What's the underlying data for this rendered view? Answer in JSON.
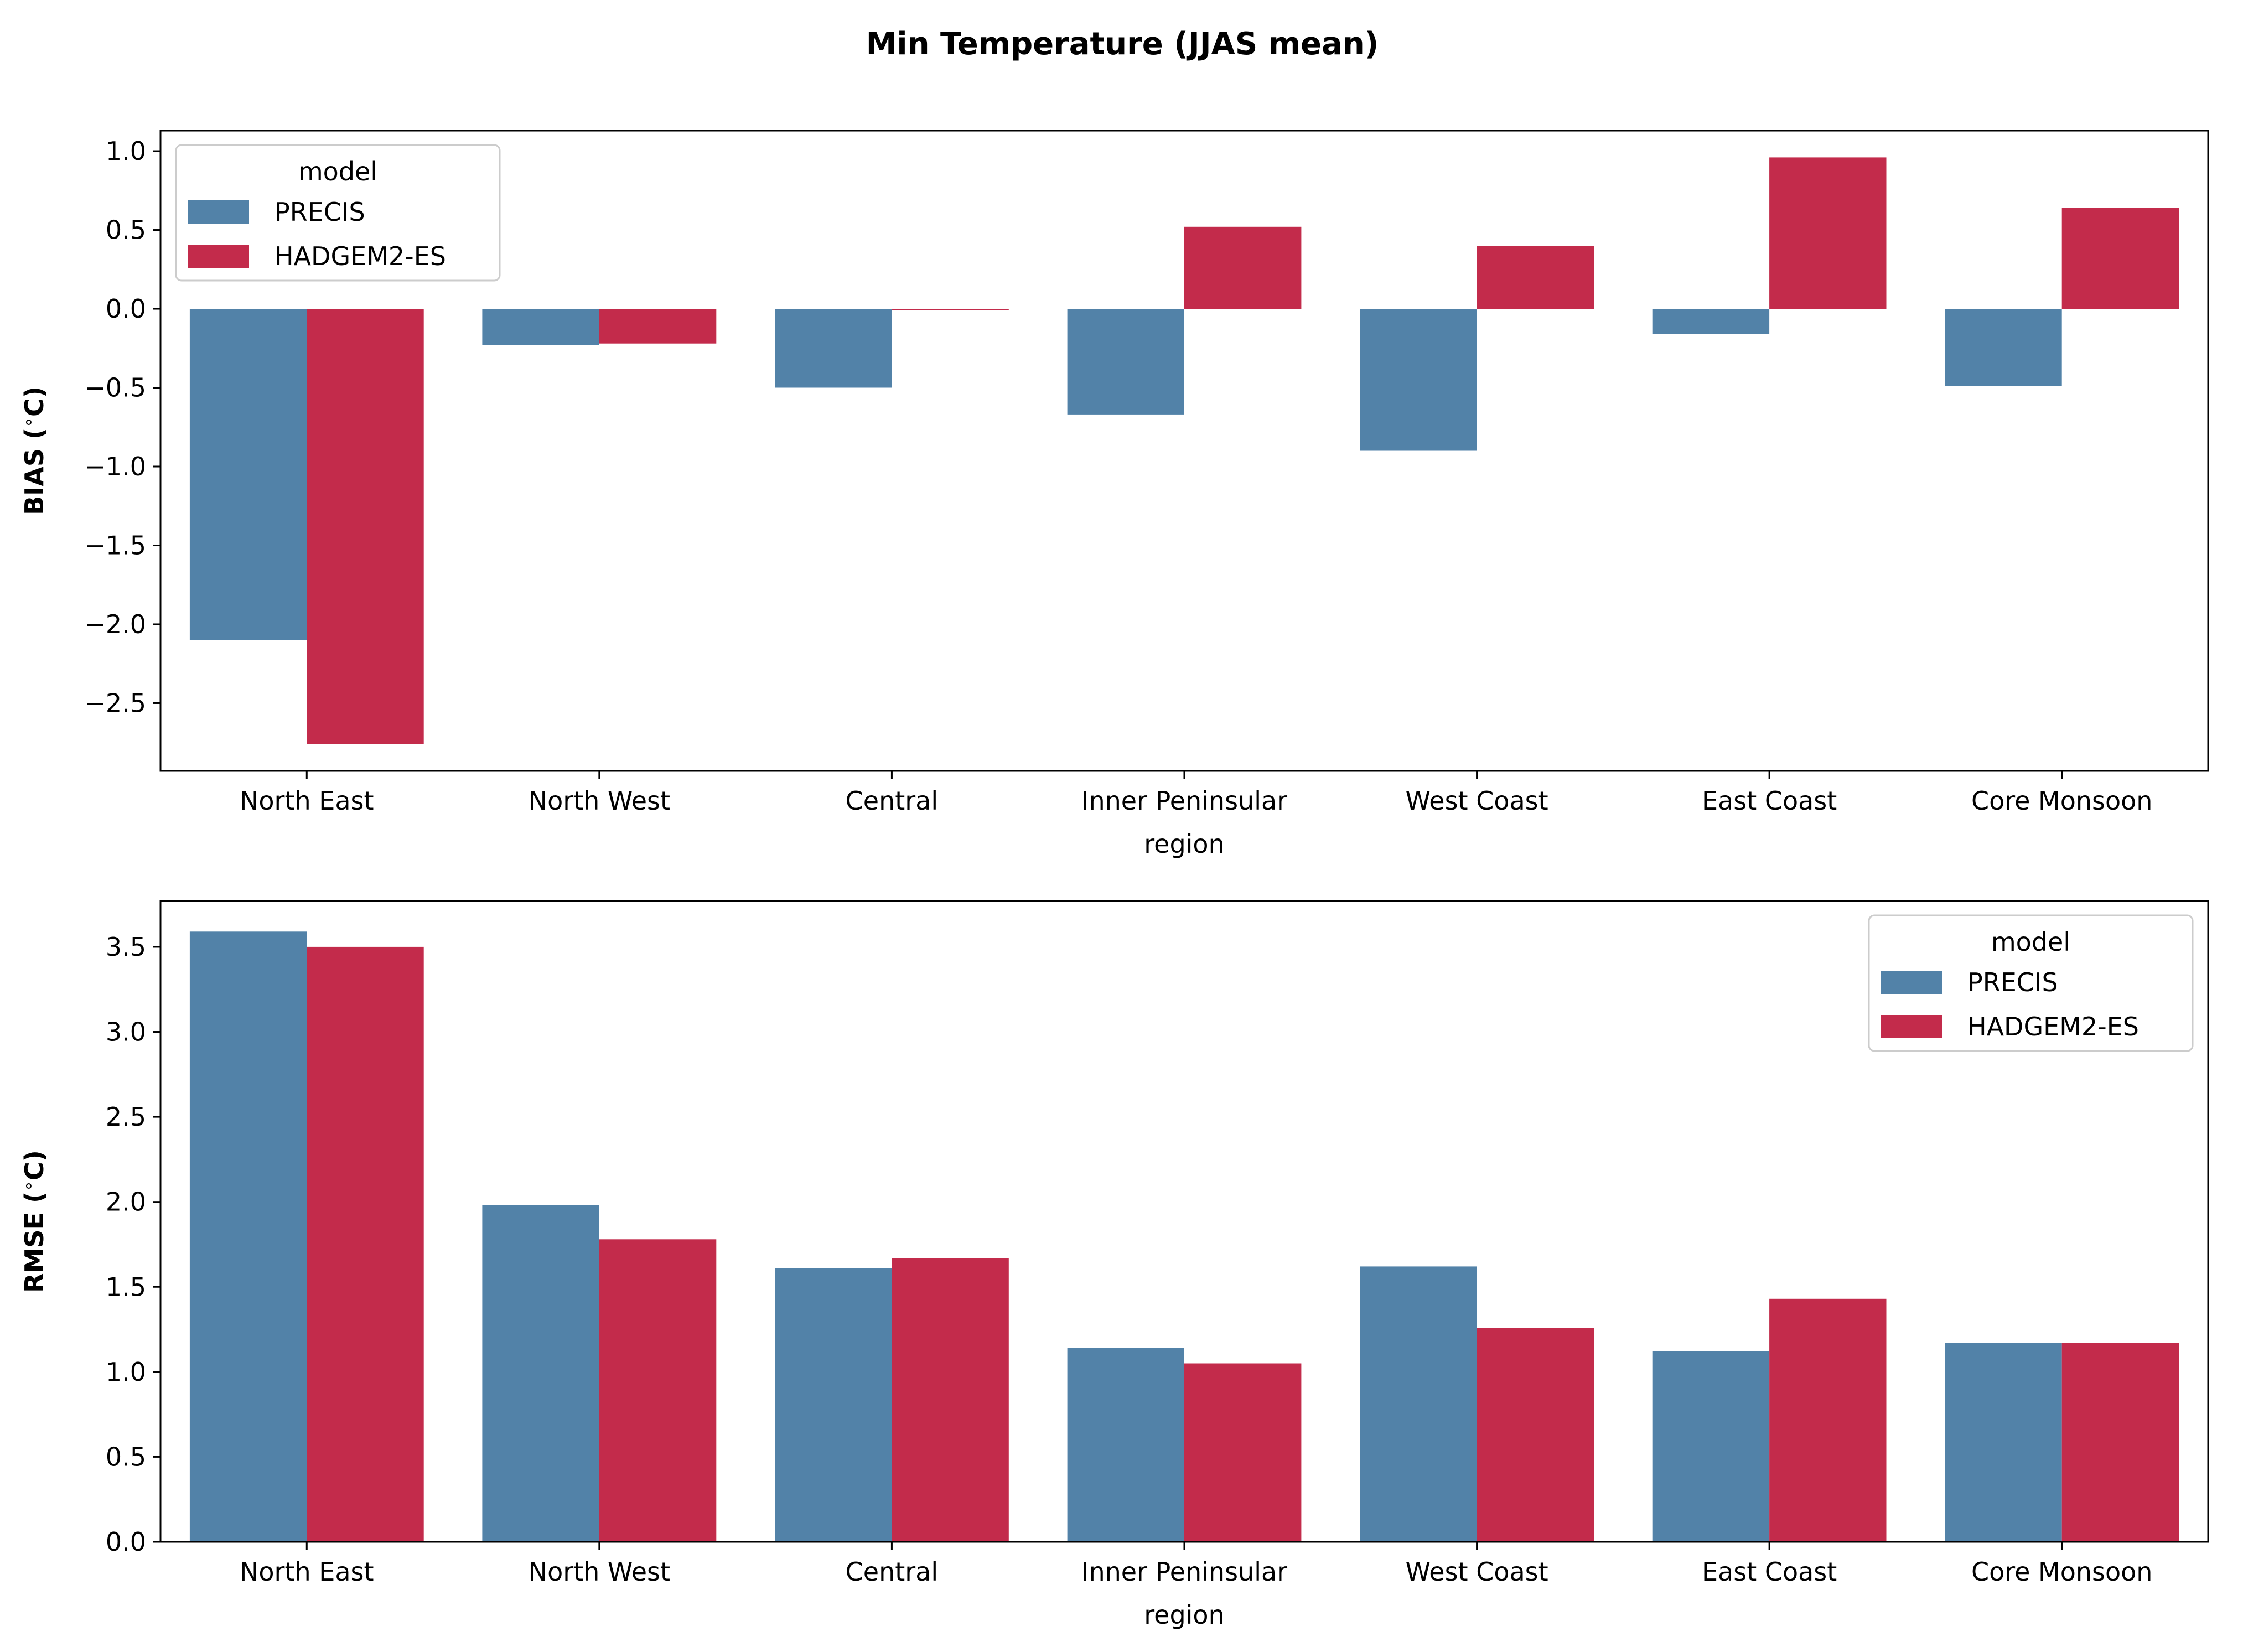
{
  "figure": {
    "title": "Min Temperature (JJAS mean)"
  },
  "colors": {
    "PRECIS": "#5282a8",
    "HADGEM2-ES": "#c32b4b"
  },
  "chart_data": [
    {
      "type": "bar",
      "categories": [
        "North East",
        "North West",
        "Central",
        "Inner Peninsular",
        "West Coast",
        "East Coast",
        "Core Monsoon"
      ],
      "xlabel": "region",
      "ylabel": "BIAS ($^\\circ$C)",
      "ylim": [
        -2.93,
        1.13
      ],
      "yticks": [
        1.0,
        0.5,
        0.0,
        -0.5,
        -1.0,
        -1.5,
        -2.0,
        -2.5
      ],
      "ytick_labels": [
        "1.0",
        "0.5",
        "0.0",
        "−0.5",
        "−1.0",
        "−1.5",
        "−2.0",
        "−2.5"
      ],
      "legend": {
        "title": "model",
        "position": "upper left",
        "entries": [
          "PRECIS",
          "HADGEM2-ES"
        ]
      },
      "series": [
        {
          "name": "PRECIS",
          "values": [
            -2.1,
            -0.23,
            -0.5,
            -0.67,
            -0.9,
            -0.16,
            -0.49
          ]
        },
        {
          "name": "HADGEM2-ES",
          "values": [
            -2.76,
            -0.22,
            -0.01,
            0.52,
            0.4,
            0.96,
            0.64
          ]
        }
      ]
    },
    {
      "type": "bar",
      "categories": [
        "North East",
        "North West",
        "Central",
        "Inner Peninsular",
        "West Coast",
        "East Coast",
        "Core Monsoon"
      ],
      "xlabel": "region",
      "ylabel": "RMSE ($^\\circ$C)",
      "ylim": [
        0.0,
        3.77
      ],
      "yticks": [
        0.0,
        0.5,
        1.0,
        1.5,
        2.0,
        2.5,
        3.0,
        3.5
      ],
      "ytick_labels": [
        "0.0",
        "0.5",
        "1.0",
        "1.5",
        "2.0",
        "2.5",
        "3.0",
        "3.5"
      ],
      "legend": {
        "title": "model",
        "position": "upper right",
        "entries": [
          "PRECIS",
          "HADGEM2-ES"
        ]
      },
      "series": [
        {
          "name": "PRECIS",
          "values": [
            3.59,
            1.98,
            1.61,
            1.14,
            1.62,
            1.12,
            1.17
          ]
        },
        {
          "name": "HADGEM2-ES",
          "values": [
            3.5,
            1.78,
            1.67,
            1.05,
            1.26,
            1.43,
            1.17
          ]
        }
      ]
    }
  ]
}
